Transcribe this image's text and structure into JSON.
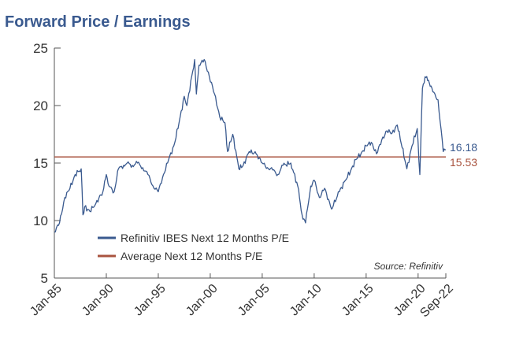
{
  "chart_data": {
    "type": "line",
    "title": "Forward Price / Earnings",
    "x_tick_labels": [
      "Jan-85",
      "Jan-90",
      "Jan-95",
      "Jan-00",
      "Jan-05",
      "Jan-10",
      "Jan-15",
      "Jan-20",
      "Sep-22"
    ],
    "y_tick_labels": [
      "5",
      "10",
      "15",
      "20",
      "25"
    ],
    "xlim": [
      "1985-01",
      "2022-09"
    ],
    "ylim": [
      5,
      25
    ],
    "grid": false,
    "legend_position": "bottom-left",
    "series": [
      {
        "name": "Refinitiv IBES Next 12 Months P/E",
        "color": "#3a5a8f",
        "x": [
          "1985-01",
          "1985-07",
          "1986-01",
          "1986-07",
          "1987-01",
          "1987-08",
          "1987-10",
          "1987-12",
          "1988-06",
          "1989-01",
          "1989-09",
          "1990-01",
          "1990-04",
          "1990-10",
          "1991-03",
          "1991-09",
          "1992-01",
          "1992-07",
          "1993-01",
          "1993-07",
          "1994-01",
          "1994-07",
          "1995-01",
          "1995-07",
          "1996-01",
          "1996-07",
          "1997-01",
          "1997-07",
          "1997-10",
          "1998-07",
          "1998-09",
          "1998-12",
          "1999-06",
          "1999-12",
          "2000-06",
          "2000-12",
          "2001-06",
          "2001-09",
          "2002-03",
          "2002-10",
          "2003-03",
          "2003-10",
          "2004-06",
          "2005-01",
          "2005-07",
          "2006-01",
          "2006-07",
          "2007-01",
          "2007-10",
          "2008-06",
          "2008-11",
          "2009-03",
          "2009-09",
          "2010-01",
          "2010-07",
          "2011-01",
          "2011-09",
          "2012-06",
          "2013-01",
          "2013-07",
          "2014-01",
          "2014-07",
          "2015-01",
          "2015-07",
          "2016-01",
          "2016-07",
          "2017-01",
          "2017-07",
          "2018-01",
          "2018-12",
          "2019-06",
          "2019-12",
          "2020-03",
          "2020-06",
          "2020-09",
          "2021-01",
          "2021-06",
          "2021-12",
          "2022-06",
          "2022-09"
        ],
        "values": [
          9.0,
          9.8,
          12.0,
          12.8,
          14.0,
          14.5,
          10.5,
          11.2,
          10.8,
          11.5,
          12.5,
          14.0,
          13.0,
          12.5,
          14.5,
          14.8,
          15.0,
          14.8,
          15.0,
          14.6,
          14.0,
          13.0,
          12.5,
          14.0,
          15.3,
          16.5,
          18.5,
          20.8,
          20.0,
          24.0,
          21.0,
          23.5,
          24.0,
          22.5,
          21.0,
          19.0,
          18.5,
          16.0,
          17.5,
          14.5,
          14.8,
          16.0,
          15.8,
          15.0,
          14.6,
          14.4,
          14.0,
          14.8,
          15.0,
          13.0,
          10.5,
          9.8,
          13.0,
          13.5,
          12.0,
          12.8,
          11.0,
          12.5,
          13.5,
          14.3,
          15.3,
          15.8,
          16.5,
          16.8,
          15.8,
          17.0,
          17.8,
          17.6,
          18.3,
          14.5,
          16.5,
          18.0,
          14.0,
          21.5,
          22.5,
          22.2,
          21.2,
          20.5,
          16.0,
          16.18
        ]
      },
      {
        "name": "Average Next 12 Months P/E",
        "color": "#a9533f",
        "x": [
          "1985-01",
          "2022-09"
        ],
        "values": [
          15.53,
          15.53
        ]
      }
    ],
    "annotations": {
      "last_value_label": "16.18",
      "average_label": "15.53",
      "source": "Source: Refinitiv"
    }
  }
}
